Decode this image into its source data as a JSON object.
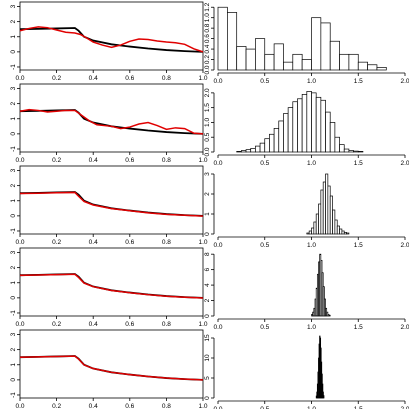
{
  "colors": {
    "true_curve": "#000000",
    "estimate_curve": "#e00000",
    "bar_fill": "#ffffff",
    "bar_stroke": "#000000"
  },
  "chart_data": [
    {
      "type": "line",
      "row": 1,
      "x_ticks": [
        "0.0",
        "0.2",
        "0.4",
        "0.6",
        "0.8",
        "1.0"
      ],
      "y_ticks": [
        "-1",
        "0",
        "1",
        "2",
        "3"
      ],
      "xlim": [
        0,
        1
      ],
      "ylim": [
        -1.2,
        3.3
      ],
      "series": [
        {
          "role": "true",
          "x": [
            0,
            0.1,
            0.2,
            0.3,
            0.32,
            0.35,
            0.4,
            0.5,
            0.6,
            0.7,
            0.8,
            0.9,
            1.0
          ],
          "y": [
            1.5,
            1.52,
            1.55,
            1.58,
            1.4,
            1.0,
            0.75,
            0.5,
            0.35,
            0.22,
            0.12,
            0.05,
            0.0
          ]
        },
        {
          "role": "estimate",
          "x": [
            0,
            0.05,
            0.1,
            0.15,
            0.2,
            0.25,
            0.3,
            0.33,
            0.36,
            0.4,
            0.45,
            0.5,
            0.55,
            0.6,
            0.65,
            0.7,
            0.75,
            0.8,
            0.85,
            0.9,
            0.95,
            1.0
          ],
          "y": [
            1.4,
            1.55,
            1.65,
            1.6,
            1.45,
            1.3,
            1.25,
            1.15,
            0.95,
            0.65,
            0.45,
            0.3,
            0.45,
            0.7,
            0.85,
            0.82,
            0.72,
            0.65,
            0.6,
            0.5,
            0.2,
            0.0
          ]
        }
      ]
    },
    {
      "type": "bar",
      "row": 1,
      "x_ticks": [
        "0.0",
        "0.5",
        "1.0",
        "1.5",
        "2.0"
      ],
      "y_ticks": [
        "0.0",
        "0.2",
        "0.4",
        "0.6",
        "0.8",
        "1.0",
        "1.2"
      ],
      "xlim": [
        0,
        2
      ],
      "ylim": [
        0,
        1.3
      ],
      "bin_start": 0.0,
      "bin_width": 0.1,
      "values": [
        1.2,
        1.1,
        0.45,
        0.4,
        0.6,
        0.3,
        0.5,
        0.15,
        0.3,
        0.2,
        1.0,
        0.9,
        0.55,
        0.3,
        0.3,
        0.15,
        0.1,
        0.05
      ]
    },
    {
      "type": "line",
      "row": 2,
      "x_ticks": [
        "0.0",
        "0.2",
        "0.4",
        "0.6",
        "0.8",
        "1.0"
      ],
      "y_ticks": [
        "-1",
        "0",
        "1",
        "2",
        "3"
      ],
      "xlim": [
        0,
        1
      ],
      "ylim": [
        -1.2,
        3.3
      ],
      "series": [
        {
          "role": "true",
          "x": [
            0,
            0.1,
            0.2,
            0.3,
            0.32,
            0.35,
            0.4,
            0.5,
            0.6,
            0.7,
            0.8,
            0.9,
            1.0
          ],
          "y": [
            1.5,
            1.52,
            1.55,
            1.58,
            1.4,
            1.0,
            0.75,
            0.5,
            0.35,
            0.22,
            0.12,
            0.05,
            0.0
          ]
        },
        {
          "role": "estimate",
          "x": [
            0,
            0.05,
            0.1,
            0.15,
            0.2,
            0.25,
            0.3,
            0.34,
            0.38,
            0.42,
            0.46,
            0.5,
            0.55,
            0.6,
            0.65,
            0.7,
            0.75,
            0.8,
            0.85,
            0.9,
            0.95,
            1.0
          ],
          "y": [
            1.5,
            1.6,
            1.55,
            1.45,
            1.5,
            1.55,
            1.55,
            1.2,
            0.85,
            0.6,
            0.55,
            0.5,
            0.35,
            0.45,
            0.65,
            0.75,
            0.55,
            0.3,
            0.4,
            0.35,
            0.05,
            0.0
          ]
        }
      ]
    },
    {
      "type": "bar",
      "row": 2,
      "x_ticks": [
        "0.0",
        "0.5",
        "1.0",
        "1.5",
        "2.0"
      ],
      "y_ticks": [
        "0.0",
        "0.5",
        "1.0",
        "1.5",
        "2.0"
      ],
      "xlim": [
        0,
        2
      ],
      "ylim": [
        0,
        2.3
      ],
      "bin_start": 0.2,
      "bin_width": 0.05,
      "values": [
        0.02,
        0.05,
        0.08,
        0.12,
        0.2,
        0.3,
        0.45,
        0.6,
        0.8,
        1.05,
        1.3,
        1.5,
        1.7,
        1.8,
        1.95,
        2.05,
        2.0,
        1.85,
        1.75,
        1.35,
        1.0,
        0.5,
        0.25,
        0.1,
        0.05,
        0.03,
        0.02
      ]
    },
    {
      "type": "line",
      "row": 3,
      "x_ticks": [
        "0.0",
        "0.2",
        "0.4",
        "0.6",
        "0.8",
        "1.0"
      ],
      "y_ticks": [
        "-1",
        "0",
        "1",
        "2",
        "3"
      ],
      "xlim": [
        0,
        1
      ],
      "ylim": [
        -1.2,
        3.3
      ],
      "series": [
        {
          "role": "true",
          "x": [
            0,
            0.1,
            0.2,
            0.3,
            0.32,
            0.35,
            0.4,
            0.5,
            0.6,
            0.7,
            0.8,
            0.9,
            1.0
          ],
          "y": [
            1.5,
            1.52,
            1.55,
            1.58,
            1.4,
            1.0,
            0.75,
            0.5,
            0.35,
            0.22,
            0.12,
            0.05,
            0.0
          ]
        },
        {
          "role": "estimate",
          "x": [
            0,
            0.1,
            0.2,
            0.3,
            0.32,
            0.35,
            0.4,
            0.5,
            0.6,
            0.7,
            0.8,
            0.9,
            1.0
          ],
          "y": [
            1.48,
            1.5,
            1.53,
            1.55,
            1.3,
            0.95,
            0.72,
            0.48,
            0.34,
            0.2,
            0.1,
            0.04,
            -0.02
          ]
        }
      ]
    },
    {
      "type": "bar",
      "row": 3,
      "x_ticks": [
        "0.0",
        "0.5",
        "1.0",
        "1.5",
        "2.0"
      ],
      "y_ticks": [
        "0",
        "1",
        "2",
        "3"
      ],
      "xlim": [
        0,
        2
      ],
      "ylim": [
        0,
        3.4
      ],
      "bin_start": 0.95,
      "bin_width": 0.025,
      "values": [
        0.05,
        0.15,
        0.3,
        0.6,
        1.0,
        1.5,
        2.2,
        2.6,
        3.0,
        2.4,
        1.9,
        1.2,
        0.7,
        0.4,
        0.25,
        0.15,
        0.08,
        0.05
      ]
    },
    {
      "type": "line",
      "row": 4,
      "x_ticks": [
        "0.0",
        "0.2",
        "0.4",
        "0.6",
        "0.8",
        "1.0"
      ],
      "y_ticks": [
        "-1",
        "0",
        "1",
        "2",
        "3"
      ],
      "xlim": [
        0,
        1
      ],
      "ylim": [
        -1.2,
        3.3
      ],
      "series": [
        {
          "role": "true",
          "x": [
            0,
            0.1,
            0.2,
            0.3,
            0.32,
            0.35,
            0.4,
            0.5,
            0.6,
            0.7,
            0.8,
            0.9,
            1.0
          ],
          "y": [
            1.5,
            1.52,
            1.55,
            1.58,
            1.4,
            1.0,
            0.75,
            0.5,
            0.35,
            0.22,
            0.12,
            0.05,
            0.0
          ]
        },
        {
          "role": "estimate",
          "x": [
            0,
            0.1,
            0.2,
            0.3,
            0.32,
            0.35,
            0.4,
            0.5,
            0.6,
            0.7,
            0.8,
            0.9,
            1.0
          ],
          "y": [
            1.49,
            1.51,
            1.54,
            1.56,
            1.35,
            0.98,
            0.74,
            0.49,
            0.34,
            0.21,
            0.11,
            0.04,
            -0.01
          ]
        }
      ]
    },
    {
      "type": "bar",
      "row": 4,
      "x_ticks": [
        "0.0",
        "0.5",
        "1.0",
        "1.5",
        "2.0"
      ],
      "y_ticks": [
        "0",
        "2",
        "4",
        "6",
        "8"
      ],
      "xlim": [
        0,
        2
      ],
      "ylim": [
        0,
        8.8
      ],
      "bin_start": 1.0,
      "bin_width": 0.0125,
      "values": [
        0.2,
        0.5,
        1.0,
        2.2,
        3.6,
        5.4,
        7.0,
        8.0,
        7.2,
        5.6,
        3.8,
        2.2,
        1.0,
        0.5,
        0.2,
        0.1
      ]
    },
    {
      "type": "line",
      "row": 5,
      "x_ticks": [
        "0.0",
        "0.2",
        "0.4",
        "0.6",
        "0.8",
        "1.0"
      ],
      "y_ticks": [
        "-1",
        "0",
        "1",
        "2",
        "3"
      ],
      "xlim": [
        0,
        1
      ],
      "ylim": [
        -1.2,
        3.3
      ],
      "series": [
        {
          "role": "true",
          "x": [
            0,
            0.1,
            0.2,
            0.3,
            0.32,
            0.35,
            0.4,
            0.5,
            0.6,
            0.7,
            0.8,
            0.9,
            1.0
          ],
          "y": [
            1.5,
            1.52,
            1.55,
            1.58,
            1.4,
            1.0,
            0.75,
            0.5,
            0.35,
            0.22,
            0.12,
            0.05,
            0.0
          ]
        },
        {
          "role": "estimate",
          "x": [
            0,
            0.1,
            0.2,
            0.3,
            0.32,
            0.35,
            0.4,
            0.5,
            0.6,
            0.7,
            0.8,
            0.9,
            1.0
          ],
          "y": [
            1.5,
            1.52,
            1.55,
            1.57,
            1.38,
            0.99,
            0.75,
            0.5,
            0.35,
            0.22,
            0.12,
            0.05,
            0.0
          ]
        }
      ]
    },
    {
      "type": "bar",
      "row": 5,
      "x_ticks": [
        "0.0",
        "0.5",
        "1.0",
        "1.5",
        "2.0"
      ],
      "y_ticks": [
        "0",
        "5",
        "10",
        "15"
      ],
      "xlim": [
        0,
        2
      ],
      "ylim": [
        0,
        17
      ],
      "bin_start": 1.05,
      "bin_width": 0.006,
      "values": [
        0.5,
        1.5,
        3.5,
        6.5,
        10.0,
        13.5,
        15.5,
        15.0,
        12.5,
        9.0,
        6.0,
        3.5,
        1.5,
        0.6
      ]
    }
  ]
}
